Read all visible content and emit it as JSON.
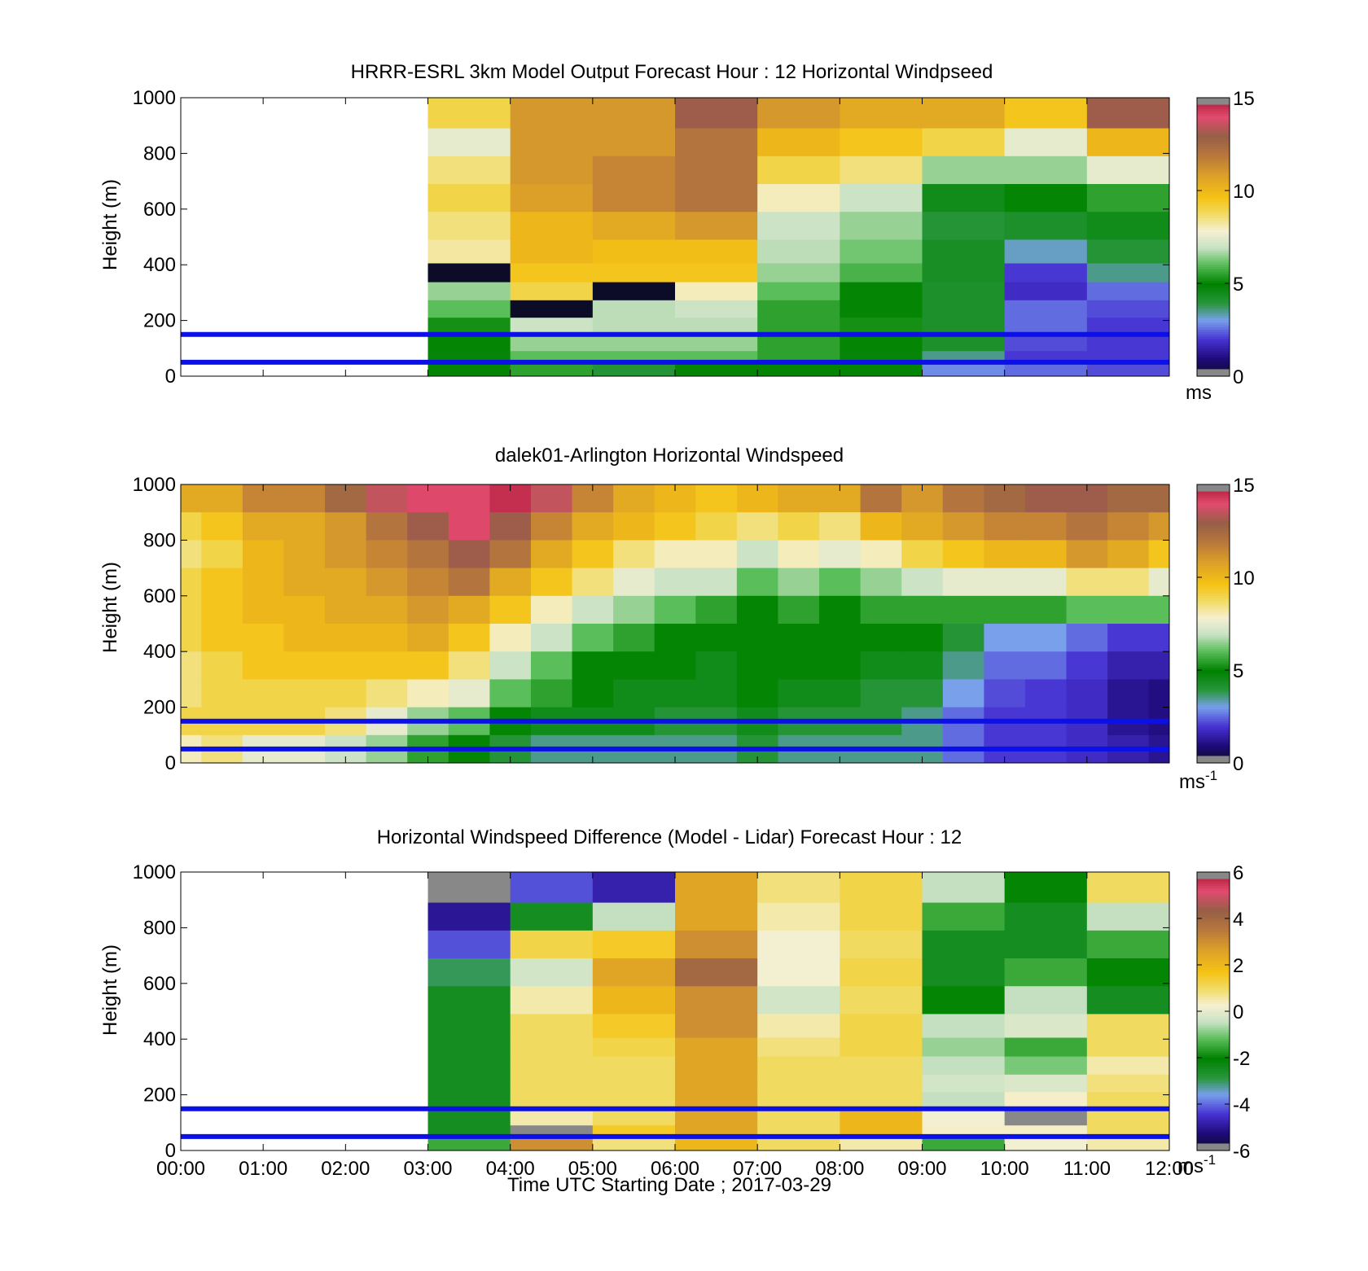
{
  "colors": {
    "background": "#ffffff",
    "reference_lines": "#0a10e6",
    "axis": "#000000"
  },
  "x_axis": {
    "label": "Time UTC  Starting Date ; 2017-03-29",
    "ticks": [
      "00:00",
      "01:00",
      "02:00",
      "03:00",
      "04:00",
      "05:00",
      "06:00",
      "07:00",
      "08:00",
      "09:00",
      "10:00",
      "11:00",
      "12:00"
    ]
  },
  "chart_data": [
    {
      "type": "heatmap",
      "title": "HRRR-ESRL 3km Model Output   Forecast Hour : 12 Horizontal Windpseed",
      "xlabel": "",
      "ylabel": "Height (m)",
      "xlim": [
        "00:00",
        "12:00"
      ],
      "ylim": [
        0,
        1000
      ],
      "yticks": [
        "0",
        "200",
        "400",
        "600",
        "800",
        "1000"
      ],
      "colorbar": {
        "ticks": [
          "0",
          "5",
          "10",
          "15"
        ],
        "range": [
          0,
          15
        ],
        "unit": "ms",
        "unit_sup": ""
      },
      "reference_lines_m": [
        50,
        150
      ],
      "hours": [
        3,
        4,
        5,
        6,
        7,
        8,
        9,
        10,
        11
      ],
      "heights_m": [
        940,
        840,
        740,
        640,
        540,
        440,
        370,
        305,
        240,
        180,
        120,
        60,
        25
      ],
      "values": [
        [
          9,
          11,
          11,
          13,
          11,
          10.5,
          10.5,
          9.5,
          13
        ],
        [
          7.5,
          11,
          11,
          12,
          10,
          9.5,
          9,
          7.5,
          10
        ],
        [
          8.5,
          11,
          11.5,
          12,
          9,
          8.5,
          6.5,
          6.5,
          7.5
        ],
        [
          9,
          10.8,
          11.5,
          12,
          8,
          7,
          4.5,
          5,
          5.5
        ],
        [
          8.5,
          10,
          10.5,
          11,
          7,
          6.5,
          4,
          4.2,
          4.5
        ],
        [
          8.2,
          10,
          9.8,
          9.8,
          6.8,
          6.2,
          4.3,
          3.2,
          4
        ],
        [
          0,
          9.5,
          9.5,
          9.5,
          6.5,
          5.8,
          4.3,
          2,
          3.5
        ],
        [
          6.5,
          9,
          0,
          8,
          6,
          5,
          4.2,
          1.8,
          2.5
        ],
        [
          6,
          0,
          6.8,
          7,
          5.5,
          5,
          4.2,
          2.5,
          2.2
        ],
        [
          5.2,
          7,
          6.8,
          6.8,
          5.5,
          5.2,
          4.2,
          2.5,
          2
        ],
        [
          5,
          6.5,
          6.5,
          6.5,
          5.5,
          5,
          4.2,
          2.2,
          2
        ],
        [
          4.8,
          6,
          6,
          6,
          5.5,
          4.8,
          3.5,
          2,
          2
        ],
        [
          5,
          5.5,
          4,
          5,
          5,
          5,
          2.8,
          2.5,
          2.2
        ]
      ]
    },
    {
      "type": "heatmap",
      "title": "dalek01-Arlington  Horizontal Windspeed",
      "xlabel": "",
      "ylabel": "Height (m)",
      "xlim": [
        "00:00",
        "12:00"
      ],
      "ylim": [
        0,
        1000
      ],
      "yticks": [
        "0",
        "200",
        "400",
        "600",
        "800",
        "1000"
      ],
      "colorbar": {
        "ticks": [
          "0",
          "5",
          "10",
          "15"
        ],
        "range": [
          0,
          15
        ],
        "unit": "ms",
        "unit_sup": "-1"
      },
      "reference_lines_m": [
        50,
        150
      ],
      "profile_times_h": [
        0.0,
        0.5,
        1.0,
        1.5,
        2.0,
        2.5,
        3.0,
        3.5,
        4.0,
        4.5,
        5.0,
        5.5,
        6.0,
        6.5,
        7.0,
        7.5,
        8.0,
        8.5,
        9.0,
        9.5,
        10.0,
        10.5,
        11.0,
        11.5,
        12.0
      ],
      "heights_m": [
        950,
        850,
        750,
        650,
        550,
        450,
        350,
        250,
        150,
        50
      ],
      "values": [
        [
          10.5,
          10.5,
          11.5,
          11.5,
          12.5,
          13.5,
          14,
          14,
          14.5,
          13.5,
          11.5,
          10.5,
          10,
          9.5,
          10,
          10.5,
          10.5,
          12,
          11,
          12,
          12.5,
          13,
          13,
          12.5,
          12.5
        ],
        [
          9,
          9.5,
          10.5,
          10.5,
          11,
          12,
          13,
          14,
          13,
          11.5,
          10.5,
          10,
          9.5,
          9,
          8.5,
          9,
          8.5,
          10,
          10.5,
          11,
          11.5,
          11.5,
          12,
          11.5,
          11
        ],
        [
          8.5,
          9,
          10,
          10.5,
          11,
          11.5,
          12,
          13,
          12,
          10.5,
          9.5,
          8.5,
          8,
          8,
          7,
          8,
          7.5,
          8,
          9,
          9.5,
          10,
          10,
          11,
          10.5,
          9.5
        ],
        [
          9,
          9.5,
          10,
          10.5,
          10.5,
          11,
          11.5,
          12,
          10.5,
          9.5,
          8.5,
          7.5,
          7,
          7,
          6,
          6.5,
          6,
          6.5,
          7,
          7.5,
          7.5,
          7.5,
          8.5,
          8.5,
          7.5
        ],
        [
          9,
          9.5,
          10,
          10,
          10.5,
          10.5,
          11,
          10.5,
          9.5,
          8,
          7,
          6.5,
          6,
          5.5,
          5,
          5.5,
          5,
          5.5,
          5.5,
          5.5,
          5.5,
          5.5,
          6,
          6,
          6
        ],
        [
          9,
          9.5,
          9.5,
          10,
          10,
          10,
          10.5,
          9.5,
          8,
          7,
          6,
          5.5,
          5,
          5,
          5,
          5,
          5,
          5,
          5,
          4,
          3,
          3,
          2.5,
          2,
          2
        ],
        [
          8.5,
          9,
          9.5,
          9.5,
          9.5,
          9.5,
          9.5,
          8.5,
          7,
          6,
          5,
          5,
          5,
          4.5,
          5,
          5,
          5,
          4.5,
          4.5,
          3.5,
          2.5,
          2.5,
          2,
          1.5,
          1.5
        ],
        [
          8.5,
          9,
          9,
          9,
          9,
          8.5,
          8,
          7.5,
          6,
          5.5,
          5,
          4.5,
          4.5,
          4.5,
          5,
          4.5,
          4.5,
          4,
          4,
          3,
          2.2,
          2,
          1.8,
          1.2,
          1
        ],
        [
          9,
          9,
          9,
          9,
          8.5,
          7.5,
          6.5,
          6,
          5,
          4.5,
          4.5,
          4.5,
          4,
          4,
          4.5,
          4,
          4,
          4,
          3.5,
          2.5,
          2,
          2,
          1.8,
          1.2,
          1
        ],
        [
          8,
          8.5,
          7.5,
          7.5,
          7,
          6.5,
          5.5,
          5,
          4,
          3.5,
          3.5,
          3.5,
          3.5,
          3.5,
          4,
          3.5,
          3.5,
          3.5,
          3.5,
          2.5,
          2,
          2,
          1.8,
          1.5,
          1.2
        ]
      ]
    },
    {
      "type": "heatmap",
      "title": "Horizontal Windspeed Difference (Model - Lidar) Forecast Hour : 12",
      "xlabel": "Time UTC  Starting Date ; 2017-03-29",
      "ylabel": "Height (m)",
      "xlim": [
        "00:00",
        "12:00"
      ],
      "ylim": [
        0,
        1000
      ],
      "yticks": [
        "0",
        "200",
        "400",
        "600",
        "800",
        "1000"
      ],
      "colorbar": {
        "ticks": [
          "-6",
          "-4",
          "-2",
          "0",
          "2",
          "4",
          "6"
        ],
        "range": [
          -6,
          6
        ],
        "unit": "ms",
        "unit_sup": "-1"
      },
      "reference_lines_m": [
        50,
        150
      ],
      "hours": [
        3,
        4,
        5,
        6,
        7,
        8,
        9,
        10,
        11
      ],
      "heights_m": [
        940,
        840,
        740,
        640,
        540,
        440,
        370,
        305,
        240,
        180,
        120,
        60,
        25
      ],
      "values": [
        [
          -7,
          -4.2,
          -4.8,
          2.5,
          0.8,
          1.2,
          -0.5,
          -2,
          1
        ],
        [
          -5,
          -2.5,
          -0.5,
          2.5,
          0.5,
          1.2,
          -1.5,
          -2.5,
          -0.5
        ],
        [
          -4.2,
          1.2,
          1.5,
          3,
          0.2,
          1,
          -2.5,
          -2.5,
          -1.5
        ],
        [
          -3,
          -0.3,
          2.5,
          4,
          0.2,
          1.2,
          -2.5,
          -1.5,
          -2
        ],
        [
          -2.5,
          0.5,
          2,
          3,
          -0.3,
          1,
          -2,
          -0.5,
          -2.5
        ],
        [
          -2.5,
          1,
          1.5,
          3,
          0.5,
          1.2,
          -0.5,
          -0.2,
          1
        ],
        [
          -2.5,
          1,
          1.2,
          2.5,
          0.8,
          1.2,
          -0.8,
          -1.5,
          1
        ],
        [
          -2.5,
          1,
          1,
          2.5,
          1,
          1,
          -0.5,
          -1,
          0.5
        ],
        [
          -2.5,
          1,
          1,
          2.5,
          1,
          1,
          -0.3,
          -0.2,
          0.8
        ],
        [
          -2.5,
          1,
          1,
          2.5,
          1,
          1,
          -0.5,
          0.3,
          1
        ],
        [
          -2.5,
          0.5,
          1,
          2.5,
          1,
          2,
          0.2,
          -8,
          1
        ],
        [
          -2.5,
          -8,
          1.5,
          2.5,
          1,
          2,
          0.3,
          0.3,
          1
        ],
        [
          -1.5,
          3,
          0.8,
          2,
          1,
          0.5,
          -1.5,
          0.2,
          0.5
        ]
      ]
    }
  ]
}
